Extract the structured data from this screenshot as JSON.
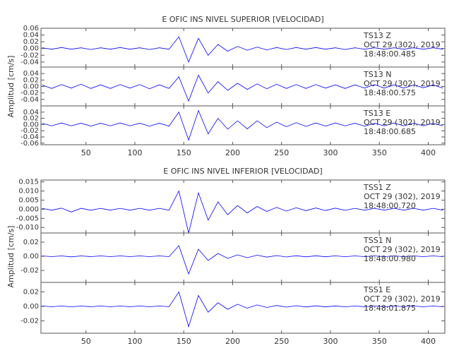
{
  "chart_data": [
    {
      "type": "line",
      "title": "E OFIC INS NIVEL SUPERIOR [VELOCIDAD]",
      "ylabel": "Amplitud [cm/s]",
      "xlim": [
        4,
        417
      ],
      "xticks": [
        50,
        100,
        150,
        200,
        250,
        300,
        350,
        400
      ],
      "x": [
        5,
        15,
        25,
        35,
        45,
        55,
        65,
        75,
        85,
        95,
        105,
        115,
        125,
        135,
        145,
        155,
        165,
        175,
        185,
        195,
        205,
        215,
        225,
        235,
        245,
        255,
        265,
        275,
        285,
        295,
        305,
        315,
        325,
        335,
        345,
        355,
        365,
        375,
        385,
        395,
        405,
        415
      ],
      "panels": [
        {
          "station": "TS13   Z",
          "date": "OCT 29 (302), 2019",
          "time": "18:48:00.485",
          "ylim": [
            -0.055,
            0.06
          ],
          "yticks": [
            -0.04,
            -0.02,
            {
              "value": 0,
              "label": "0.00"
            },
            0.02,
            0.04,
            0.06
          ],
          "series": [
            {
              "color": "#0000ff",
              "values": [
                0.002,
                -0.002,
                0.003,
                -0.002,
                0.002,
                -0.003,
                0.002,
                -0.002,
                0.003,
                -0.002,
                0.002,
                -0.003,
                0.002,
                -0.002,
                0.035,
                -0.04,
                0.03,
                -0.02,
                0.012,
                -0.008,
                0.006,
                -0.005,
                0.004,
                -0.004,
                0.003,
                -0.003,
                0.003,
                -0.002,
                0.003,
                -0.002,
                0.002,
                -0.003,
                0.002,
                -0.002,
                0.002,
                -0.002,
                0.002,
                -0.002,
                0.002,
                -0.002,
                0.002,
                -0.002
              ]
            }
          ]
        },
        {
          "station": "TS13   N",
          "date": "OCT 29 (302), 2019",
          "time": "18:48:00.575",
          "ylim": [
            -0.06,
            0.06
          ],
          "yticks": [
            -0.04,
            -0.02,
            {
              "value": 0,
              "label": "0.00"
            },
            0.02,
            0.04
          ],
          "series": [
            {
              "color": "#0000ff",
              "values": [
                0.005,
                -0.006,
                0.006,
                -0.005,
                0.007,
                -0.006,
                0.005,
                -0.006,
                0.006,
                -0.005,
                0.006,
                -0.007,
                0.005,
                -0.006,
                0.03,
                -0.045,
                0.035,
                -0.02,
                0.015,
                -0.012,
                0.01,
                -0.009,
                0.008,
                -0.007,
                0.007,
                -0.006,
                0.006,
                -0.006,
                0.006,
                -0.005,
                0.005,
                -0.006,
                0.005,
                -0.005,
                0.006,
                -0.005,
                0.005,
                -0.005,
                0.005,
                -0.004,
                0.005,
                -0.005
              ]
            }
          ]
        },
        {
          "station": "TS13   E",
          "date": "OCT 29 (302), 2019",
          "time": "18:48:00.685",
          "ylim": [
            -0.065,
            0.06
          ],
          "yticks": [
            -0.06,
            -0.04,
            -0.02,
            {
              "value": 0,
              "label": "0.00"
            },
            0.02,
            0.04
          ],
          "series": [
            {
              "color": "#0000ff",
              "values": [
                0.004,
                -0.004,
                0.005,
                -0.004,
                0.004,
                -0.005,
                0.004,
                -0.004,
                0.005,
                -0.004,
                0.004,
                -0.005,
                0.004,
                -0.005,
                0.04,
                -0.05,
                0.045,
                -0.03,
                0.02,
                -0.015,
                0.012,
                -0.014,
                0.012,
                -0.01,
                0.008,
                -0.007,
                0.006,
                -0.006,
                0.005,
                -0.005,
                0.005,
                -0.004,
                0.004,
                -0.005,
                0.004,
                -0.004,
                0.005,
                -0.004,
                0.004,
                -0.004,
                0.004,
                -0.004
              ]
            }
          ]
        }
      ]
    },
    {
      "type": "line",
      "title": "E OFIC INS NIVEL INFERIOR [VELOCIDAD]",
      "ylabel": "Amplitud [cm/s]",
      "xlim": [
        4,
        417
      ],
      "xticks": [
        50,
        100,
        150,
        200,
        250,
        300,
        350,
        400
      ],
      "x": [
        5,
        15,
        25,
        35,
        45,
        55,
        65,
        75,
        85,
        95,
        105,
        115,
        125,
        135,
        145,
        155,
        165,
        175,
        185,
        195,
        205,
        215,
        225,
        235,
        245,
        255,
        265,
        275,
        285,
        295,
        305,
        315,
        325,
        335,
        345,
        355,
        365,
        375,
        385,
        395,
        405,
        415
      ],
      "panels": [
        {
          "station": "TSS1   Z",
          "date": "OCT 29 (302), 2019",
          "time": "18:48:00.720",
          "ylim": [
            -0.013,
            0.016
          ],
          "yticks": [
            {
              "value": -0.01,
              "label": "-0.010"
            },
            -0.005,
            {
              "value": 0,
              "label": "0.000"
            },
            0.005,
            {
              "value": 0.01,
              "label": "0.010"
            },
            0.015
          ],
          "series": [
            {
              "color": "#0000ff",
              "values": [
                0.0005,
                -0.0005,
                0.0006,
                -0.0015,
                0.0005,
                -0.0005,
                0.0005,
                -0.0005,
                0.0005,
                -0.0005,
                0.0005,
                -0.0005,
                0.0005,
                -0.0005,
                0.01,
                -0.013,
                0.009,
                -0.006,
                0.004,
                -0.003,
                0.002,
                -0.002,
                0.0015,
                -0.0012,
                0.001,
                -0.001,
                0.0008,
                -0.0008,
                0.0007,
                -0.0007,
                0.0006,
                -0.0006,
                0.0005,
                -0.0005,
                0.0005,
                -0.0005,
                0.0005,
                -0.0005,
                0.0005,
                -0.0005,
                0.0005,
                -0.0005
              ]
            }
          ]
        },
        {
          "station": "TSS1   N",
          "date": "OCT 29 (302), 2019",
          "time": "18:48:00.980",
          "ylim": [
            -0.037,
            0.033
          ],
          "yticks": [
            -0.02,
            {
              "value": 0,
              "label": "0.00"
            },
            0.02
          ],
          "series": [
            {
              "color": "#0000ff",
              "values": [
                0.0005,
                -0.0005,
                0.0005,
                -0.0008,
                0.0005,
                -0.0005,
                0.0005,
                -0.0005,
                0.0005,
                -0.0005,
                0.0005,
                -0.0005,
                0.0005,
                -0.0005,
                0.015,
                -0.025,
                0.01,
                -0.006,
                0.004,
                -0.003,
                0.002,
                -0.002,
                0.0015,
                -0.0012,
                0.001,
                -0.001,
                0.0008,
                -0.0008,
                0.0007,
                -0.0007,
                0.0006,
                -0.0006,
                0.0005,
                -0.0005,
                0.0005,
                -0.0005,
                0.0005,
                -0.0005,
                0.0005,
                -0.0005,
                0.0005,
                -0.0005
              ]
            }
          ]
        },
        {
          "station": "TSS1   E",
          "date": "OCT 29 (302), 2019",
          "time": "18:48:01.875",
          "ylim": [
            -0.037,
            0.033
          ],
          "yticks": [
            -0.02,
            {
              "value": 0,
              "label": "0.00"
            },
            0.02
          ],
          "series": [
            {
              "color": "#0000ff",
              "values": [
                0.0005,
                -0.0005,
                0.0005,
                -0.0006,
                0.0005,
                -0.0005,
                0.0005,
                -0.0005,
                0.0005,
                -0.0005,
                0.0005,
                -0.0005,
                0.0005,
                -0.0005,
                0.02,
                -0.028,
                0.015,
                -0.008,
                0.005,
                -0.004,
                0.003,
                -0.0025,
                0.002,
                -0.0015,
                0.0012,
                -0.001,
                0.0009,
                -0.0008,
                0.0007,
                -0.0007,
                0.0006,
                -0.0006,
                0.0005,
                -0.0005,
                0.0005,
                -0.0005,
                0.0005,
                -0.0005,
                0.0005,
                -0.0005,
                0.0005,
                -0.0005
              ]
            }
          ]
        }
      ]
    }
  ]
}
